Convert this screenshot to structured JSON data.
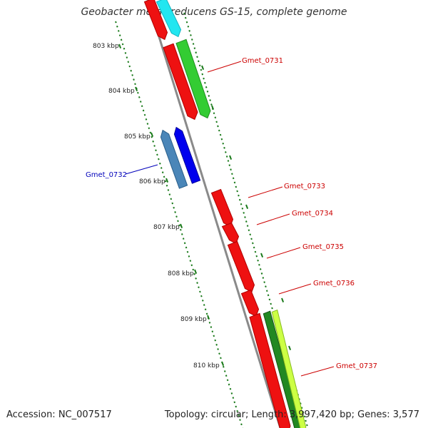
{
  "title": "Geobacter metallireducens GS-15, complete genome",
  "footer": {
    "accession": "Accession: NC_007517",
    "topology": "Topology: circular; Length: 3,997,420 bp; Genes: 3,577"
  },
  "colors": {
    "backbone": "#8a8a8a",
    "tick": "#1a7a1a",
    "label_forward": "#cc0000",
    "label_reverse": "#0000bb"
  },
  "kbp_labels": [
    {
      "label": "803 kbp",
      "kbp": 803
    },
    {
      "label": "804 kbp",
      "kbp": 804
    },
    {
      "label": "805 kbp",
      "kbp": 805
    },
    {
      "label": "806 kbp",
      "kbp": 806
    },
    {
      "label": "807 kbp",
      "kbp": 807
    },
    {
      "label": "808 kbp",
      "kbp": 808
    },
    {
      "label": "809 kbp",
      "kbp": 809
    },
    {
      "label": "810 kbp",
      "kbp": 810
    }
  ],
  "gene_labels": [
    {
      "name": "Gmet_0731",
      "strand": "forward"
    },
    {
      "name": "Gmet_0732",
      "strand": "reverse"
    },
    {
      "name": "Gmet_0733",
      "strand": "forward"
    },
    {
      "name": "Gmet_0734",
      "strand": "forward"
    },
    {
      "name": "Gmet_0735",
      "strand": "forward"
    },
    {
      "name": "Gmet_0736",
      "strand": "forward"
    },
    {
      "name": "Gmet_0737",
      "strand": "forward"
    }
  ]
}
